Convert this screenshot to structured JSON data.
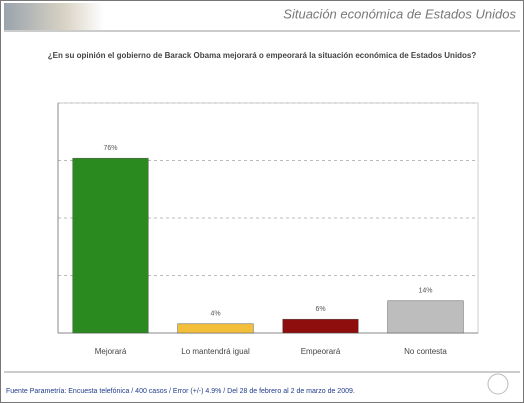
{
  "header": {
    "title": "Situación económica de Estados Unidos"
  },
  "chart_data": {
    "type": "bar",
    "subtitle": "¿En su opinión el gobierno de Barack Obama mejorará o empeorará la situación económica de Estados Unidos?",
    "categories": [
      "Mejorará",
      "Lo mantendrá igual",
      "Empeorará",
      "No contesta"
    ],
    "values": [
      76,
      4,
      6,
      14
    ],
    "value_labels": [
      "76%",
      "4%",
      "6%",
      "14%"
    ],
    "colors": [
      "#2b8a1f",
      "#f3bf3a",
      "#8e0d0d",
      "#bdbdbd"
    ],
    "ylim": [
      0,
      100
    ],
    "yticks": [
      0,
      25,
      50,
      75,
      100
    ],
    "grid": true
  },
  "footer": {
    "source": "Fuente Parametría: Encuesta telefónica / 400 casos / Error (+/-) 4.9% / Del 28 de febrero al 2 de marzo de 2009."
  }
}
